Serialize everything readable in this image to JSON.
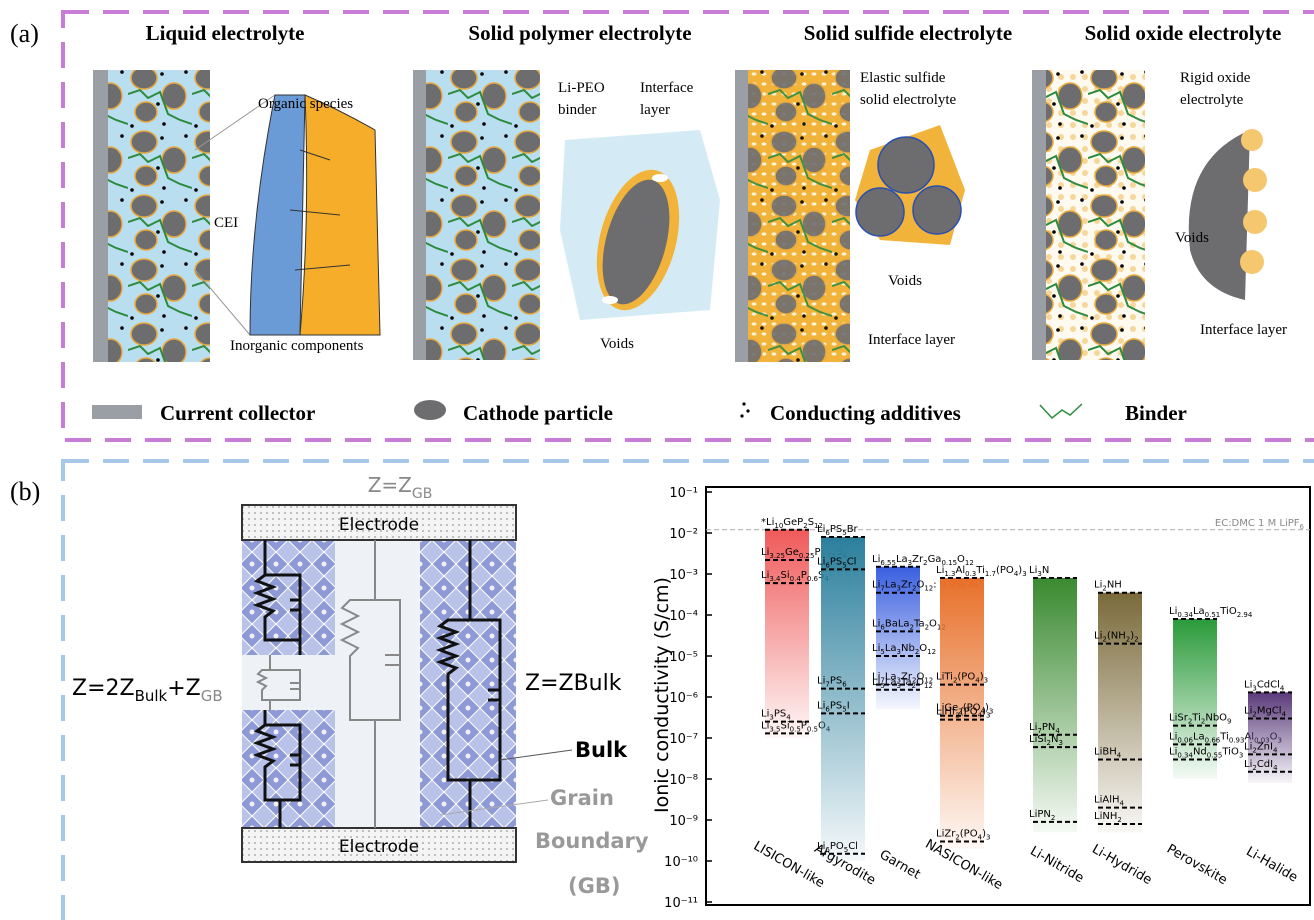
{
  "panel_a": {
    "label": "(a)",
    "titles": [
      "Liquid electrolyte",
      "Solid polymer electrolyte",
      "Solid sulfide electrolyte",
      "Solid oxide electrolyte"
    ],
    "annotations": [
      "Organic species",
      "CEI",
      "Inorganic components",
      "Li-PEO",
      "binder",
      "Interface",
      "layer",
      "Voids",
      "Elastic sulfide",
      "solid electrolyte",
      "Voids",
      "Interface layer",
      "Rigid oxide",
      "electrolyte",
      "Voids",
      "Interface layer"
    ],
    "legend": [
      "Current collector",
      "Cathode particle",
      "Conducting additives",
      "Binder"
    ]
  },
  "panel_b": {
    "label": "(b)",
    "circuit": {
      "top_formula": [
        "Z=Z",
        "GB"
      ],
      "electrode_top": "Electrode",
      "electrode_bottom": "Electrode",
      "left_formula": [
        "Z=2Z",
        "Bulk",
        "+Z",
        "GB"
      ],
      "right_formula": "Z=ZBulk",
      "bulk": "Bulk",
      "grain": "Grain",
      "boundary": "Boundary",
      "gb": "(GB)"
    }
  },
  "chart_data": {
    "type": "range",
    "ylabel": "Ionic conductivity (S/cm)",
    "log_y": true,
    "ylim": [
      1e-11,
      0.1
    ],
    "yticks": [
      {
        "value": 0.1,
        "label": "10⁻¹"
      },
      {
        "value": 0.01,
        "label": "10⁻²"
      },
      {
        "value": 0.001,
        "label": "10⁻³"
      },
      {
        "value": 0.0001,
        "label": "10⁻⁴"
      },
      {
        "value": 1e-05,
        "label": "10⁻⁵"
      },
      {
        "value": 1e-06,
        "label": "10⁻⁶"
      },
      {
        "value": 1e-07,
        "label": "10⁻⁷"
      },
      {
        "value": 1e-08,
        "label": "10⁻⁸"
      },
      {
        "value": 1e-09,
        "label": "10⁻⁹"
      },
      {
        "value": 1e-10,
        "label": "10⁻¹⁰"
      },
      {
        "value": 1e-11,
        "label": "10⁻¹¹"
      }
    ],
    "reference": {
      "label": "EC:DMC 1 M LiPF6",
      "value": 0.012
    },
    "groups": [
      {
        "name": "LISICON-like",
        "color": "#f05a5a",
        "top": 0.012,
        "bottom": 1e-07,
        "materials": [
          {
            "label": "*Li10GeP2S12",
            "value": 0.012
          },
          {
            "label": "Li3.25Ge0.25P0.75S4",
            "value": 0.0022
          },
          {
            "label": "Li3.4Si0.4P0.6S4",
            "value": 0.0006
          },
          {
            "label": "Li3PS4",
            "value": 2.5e-07
          },
          {
            "label": "Li3.5Si0.5P0.5O4",
            "value": 1.3e-07
          }
        ]
      },
      {
        "name": "Argyrodite",
        "color": "#2b7f9c",
        "top": 0.008,
        "bottom": 1e-10,
        "materials": [
          {
            "label": "Li6PS5Br",
            "value": 0.008
          },
          {
            "label": "Li6PS5Cl",
            "value": 0.0013
          },
          {
            "label": "Li7PS6",
            "value": 1.6e-06
          },
          {
            "label": "Li6PS5I",
            "value": 4e-07
          },
          {
            "label": "Li6PO5Cl",
            "value": 1.5e-10
          }
        ]
      },
      {
        "name": "Garnet",
        "color": "#3a5fe0",
        "top": 0.0015,
        "bottom": 5e-07,
        "materials": [
          {
            "label": "Li6.55La3Zr2Ga0.15O12",
            "value": 0.0015
          },
          {
            "label": "Li7La3Zr2O12: 0.9% Al",
            "value": 0.00035
          },
          {
            "label": "Li6BaLa2Ta2O12",
            "value": 4e-05
          },
          {
            "label": "Li5La3Nb2O12",
            "value": 1e-05
          },
          {
            "label": "Li7La3Zr2O12",
            "value": 2e-06
          },
          {
            "label": "Li5La3Ta2O12",
            "value": 1.5e-06
          }
        ]
      },
      {
        "name": "NASICON-like",
        "color": "#e8702a",
        "top": 0.0008,
        "bottom": 2e-10,
        "materials": [
          {
            "label": "Li1.3Al0.3Ti1.7(PO4)3",
            "value": 0.0008
          },
          {
            "label": "LiTi2(PO4)3",
            "value": 2e-06
          },
          {
            "label": "LiGe2(PO4)3",
            "value": 3.5e-07
          },
          {
            "label": "LiHf2(PO4)3",
            "value": 2.8e-07
          },
          {
            "label": "LiZr2(PO4)3",
            "value": 3e-10
          }
        ]
      },
      {
        "name": "Li-Nitride",
        "color": "#3a8a30",
        "top": 0.0008,
        "bottom": 5e-10,
        "materials": [
          {
            "label": "Li3N",
            "value": 0.0008
          },
          {
            "label": "Li7PN4",
            "value": 1.2e-07
          },
          {
            "label": "LiSi2N3",
            "value": 6e-08
          },
          {
            "label": "LiPN2",
            "value": 9e-10
          }
        ]
      },
      {
        "name": "Li-Hydride",
        "color": "#7a6a3a",
        "top": 0.00035,
        "bottom": 5e-10,
        "materials": [
          {
            "label": "Li2NH",
            "value": 0.00035
          },
          {
            "label": "Li2(NH2)2",
            "value": 2e-05
          },
          {
            "label": "LiBH4",
            "value": 3e-08
          },
          {
            "label": "LiAlH4",
            "value": 2e-09
          },
          {
            "label": "LiNH2",
            "value": 8e-10
          }
        ]
      },
      {
        "name": "Perovskite",
        "color": "#2a9a3a",
        "top": 8e-05,
        "bottom": 1e-08,
        "materials": [
          {
            "label": "Li0.34La0.51TiO2.94",
            "value": 8e-05
          },
          {
            "label": "LiSr2Ti2NbO9",
            "value": 2e-07
          },
          {
            "label": "Li0.06La0.66Ti0.93Al0.03O3",
            "value": 7e-08
          },
          {
            "label": "Li0.34Nd0.55TiO3",
            "value": 3e-08
          }
        ]
      },
      {
        "name": "Li-Halide",
        "color": "#5a3a7a",
        "top": 1.3e-06,
        "bottom": 8e-09,
        "materials": [
          {
            "label": "Li3CdCl4",
            "value": 1.3e-06
          },
          {
            "label": "Li2MgCl4",
            "value": 3e-07
          },
          {
            "label": "Li2ZnI4",
            "value": 4e-08
          },
          {
            "label": "Li2CdI4",
            "value": 1.5e-08
          }
        ]
      }
    ]
  }
}
